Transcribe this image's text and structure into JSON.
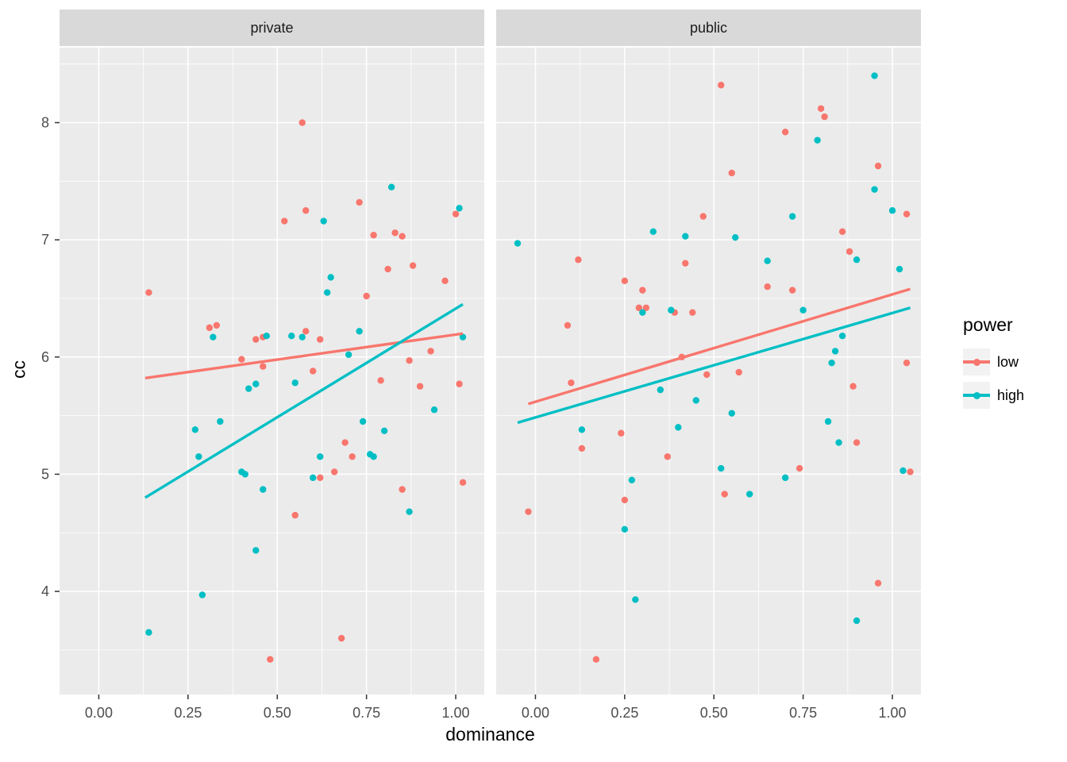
{
  "chart_data": {
    "type": "scatter",
    "title": "",
    "xlabel": "dominance",
    "ylabel": "cc",
    "legend_title": "power",
    "legend_position": "right",
    "grid": true,
    "x_domain": [
      -0.11,
      1.08
    ],
    "y_domain": [
      3.12,
      8.64
    ],
    "x_ticks": [
      0,
      0.25,
      0.5,
      0.75,
      1.0
    ],
    "x_tick_labels": [
      "0.00",
      "0.25",
      "0.50",
      "0.75",
      "1.00"
    ],
    "x_minor": [
      0.125,
      0.375,
      0.625,
      0.875
    ],
    "y_ticks": [
      4,
      5,
      6,
      7,
      8
    ],
    "y_tick_labels": [
      "4",
      "5",
      "6",
      "7",
      "8"
    ],
    "y_minor": [
      3.5,
      4.5,
      5.5,
      6.5,
      7.5,
      8.5
    ],
    "colors": {
      "low": "#F8766D",
      "high": "#00BFC4",
      "panel_bg": "#EBEBEB",
      "strip_bg": "#D9D9D9",
      "strip_text": "#1A1A1A",
      "grid": "#FFFFFF",
      "tick": "#333333",
      "tick_text": "#4D4D4D"
    },
    "facets": [
      {
        "label": "private",
        "series": [
          {
            "name": "low",
            "color": "#F8766D",
            "points": [
              [
                0.14,
                6.55
              ],
              [
                0.31,
                6.25
              ],
              [
                0.33,
                6.27
              ],
              [
                0.4,
                5.98
              ],
              [
                0.44,
                6.15
              ],
              [
                0.46,
                6.17
              ],
              [
                0.46,
                5.92
              ],
              [
                0.48,
                3.42
              ],
              [
                0.52,
                7.16
              ],
              [
                0.55,
                4.65
              ],
              [
                0.57,
                8.0
              ],
              [
                0.58,
                7.25
              ],
              [
                0.58,
                6.22
              ],
              [
                0.62,
                6.15
              ],
              [
                0.6,
                5.88
              ],
              [
                0.62,
                4.97
              ],
              [
                0.66,
                5.02
              ],
              [
                0.68,
                3.6
              ],
              [
                0.69,
                5.27
              ],
              [
                0.71,
                5.15
              ],
              [
                0.73,
                7.32
              ],
              [
                0.75,
                6.52
              ],
              [
                0.77,
                7.04
              ],
              [
                0.79,
                5.8
              ],
              [
                0.81,
                6.75
              ],
              [
                0.83,
                7.06
              ],
              [
                0.85,
                7.03
              ],
              [
                0.85,
                4.87
              ],
              [
                0.87,
                5.97
              ],
              [
                0.88,
                6.78
              ],
              [
                0.9,
                5.75
              ],
              [
                0.93,
                6.05
              ],
              [
                0.97,
                6.65
              ],
              [
                1.0,
                7.22
              ],
              [
                1.01,
                5.77
              ],
              [
                1.02,
                4.93
              ]
            ],
            "trend": {
              "x1": 0.13,
              "y1": 5.82,
              "x2": 1.02,
              "y2": 6.2
            }
          },
          {
            "name": "high",
            "color": "#00BFC4",
            "points": [
              [
                0.14,
                3.65
              ],
              [
                0.27,
                5.38
              ],
              [
                0.28,
                5.15
              ],
              [
                0.29,
                3.97
              ],
              [
                0.32,
                6.17
              ],
              [
                0.34,
                5.45
              ],
              [
                0.4,
                5.02
              ],
              [
                0.41,
                5.0
              ],
              [
                0.42,
                5.73
              ],
              [
                0.44,
                5.77
              ],
              [
                0.44,
                4.35
              ],
              [
                0.46,
                4.87
              ],
              [
                0.47,
                6.18
              ],
              [
                0.54,
                6.18
              ],
              [
                0.55,
                5.78
              ],
              [
                0.57,
                6.17
              ],
              [
                0.6,
                4.97
              ],
              [
                0.62,
                5.15
              ],
              [
                0.63,
                7.16
              ],
              [
                0.64,
                6.55
              ],
              [
                0.65,
                6.68
              ],
              [
                0.7,
                6.02
              ],
              [
                0.73,
                6.22
              ],
              [
                0.74,
                5.45
              ],
              [
                0.76,
                5.17
              ],
              [
                0.77,
                5.15
              ],
              [
                0.8,
                5.37
              ],
              [
                0.82,
                7.45
              ],
              [
                0.87,
                4.68
              ],
              [
                0.94,
                5.55
              ],
              [
                1.01,
                7.27
              ],
              [
                1.02,
                6.17
              ]
            ],
            "trend": {
              "x1": 0.13,
              "y1": 4.8,
              "x2": 1.02,
              "y2": 6.45
            }
          }
        ]
      },
      {
        "label": "public",
        "series": [
          {
            "name": "low",
            "color": "#F8766D",
            "points": [
              [
                -0.02,
                4.68
              ],
              [
                0.09,
                6.27
              ],
              [
                0.1,
                5.78
              ],
              [
                0.12,
                6.83
              ],
              [
                0.13,
                5.22
              ],
              [
                0.17,
                3.42
              ],
              [
                0.24,
                5.35
              ],
              [
                0.25,
                4.78
              ],
              [
                0.25,
                6.65
              ],
              [
                0.29,
                6.42
              ],
              [
                0.3,
                6.57
              ],
              [
                0.31,
                6.42
              ],
              [
                0.37,
                5.15
              ],
              [
                0.39,
                6.38
              ],
              [
                0.41,
                6.0
              ],
              [
                0.42,
                6.8
              ],
              [
                0.44,
                6.38
              ],
              [
                0.47,
                7.2
              ],
              [
                0.48,
                5.85
              ],
              [
                0.52,
                8.32
              ],
              [
                0.53,
                4.83
              ],
              [
                0.55,
                7.57
              ],
              [
                0.57,
                5.87
              ],
              [
                0.65,
                6.6
              ],
              [
                0.7,
                7.92
              ],
              [
                0.72,
                6.57
              ],
              [
                0.74,
                5.05
              ],
              [
                0.8,
                8.12
              ],
              [
                0.81,
                8.05
              ],
              [
                0.86,
                7.07
              ],
              [
                0.88,
                6.9
              ],
              [
                0.89,
                5.75
              ],
              [
                0.9,
                5.27
              ],
              [
                0.96,
                4.07
              ],
              [
                0.96,
                7.63
              ],
              [
                1.04,
                7.22
              ],
              [
                1.04,
                5.95
              ],
              [
                1.05,
                5.02
              ]
            ],
            "trend": {
              "x1": -0.02,
              "y1": 5.6,
              "x2": 1.05,
              "y2": 6.58
            }
          },
          {
            "name": "high",
            "color": "#00BFC4",
            "points": [
              [
                -0.05,
                6.97
              ],
              [
                0.13,
                5.38
              ],
              [
                0.25,
                4.53
              ],
              [
                0.27,
                4.95
              ],
              [
                0.28,
                3.93
              ],
              [
                0.3,
                6.38
              ],
              [
                0.33,
                7.07
              ],
              [
                0.35,
                5.72
              ],
              [
                0.38,
                6.4
              ],
              [
                0.4,
                5.4
              ],
              [
                0.42,
                7.03
              ],
              [
                0.45,
                5.63
              ],
              [
                0.52,
                5.05
              ],
              [
                0.55,
                5.52
              ],
              [
                0.56,
                7.02
              ],
              [
                0.6,
                4.83
              ],
              [
                0.65,
                6.82
              ],
              [
                0.7,
                4.97
              ],
              [
                0.72,
                7.2
              ],
              [
                0.75,
                6.4
              ],
              [
                0.79,
                7.85
              ],
              [
                0.82,
                5.45
              ],
              [
                0.83,
                5.95
              ],
              [
                0.84,
                6.05
              ],
              [
                0.85,
                5.27
              ],
              [
                0.86,
                6.18
              ],
              [
                0.9,
                3.75
              ],
              [
                0.9,
                6.83
              ],
              [
                0.95,
                8.4
              ],
              [
                0.95,
                7.43
              ],
              [
                1.0,
                7.25
              ],
              [
                1.02,
                6.75
              ],
              [
                1.03,
                5.03
              ]
            ],
            "trend": {
              "x1": -0.05,
              "y1": 5.44,
              "x2": 1.05,
              "y2": 6.42
            }
          }
        ]
      }
    ]
  }
}
